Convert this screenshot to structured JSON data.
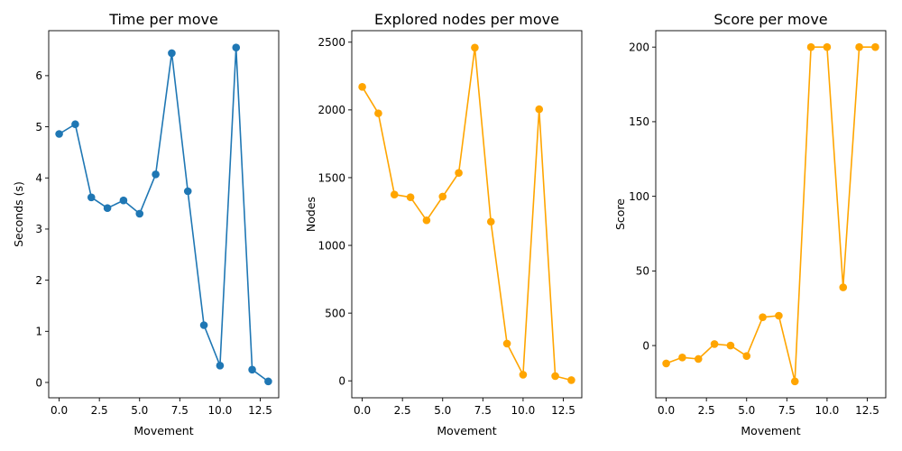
{
  "chart_data": [
    {
      "type": "line",
      "title": "Time per move",
      "xlabel": "Movement",
      "ylabel": "Seconds (s)",
      "xlim": [
        -0.65,
        13.65
      ],
      "ylim": [
        -0.3,
        6.88
      ],
      "xticks": [
        0,
        2.5,
        5,
        7.5,
        10,
        12.5
      ],
      "xtick_labels": [
        "0.0",
        "2.5",
        "5.0",
        "7.5",
        "10.0",
        "12.5"
      ],
      "yticks": [
        0,
        1,
        2,
        3,
        4,
        5,
        6
      ],
      "ytick_labels": [
        "0",
        "1",
        "2",
        "3",
        "4",
        "5",
        "6"
      ],
      "color": "#1f77b4",
      "marker": "circle",
      "grid": false,
      "x": [
        0,
        1,
        2,
        3,
        4,
        5,
        6,
        7,
        8,
        9,
        10,
        11,
        12,
        13
      ],
      "values": [
        4.86,
        5.05,
        3.62,
        3.41,
        3.56,
        3.3,
        4.07,
        6.44,
        3.74,
        1.12,
        0.33,
        6.55,
        0.25,
        0.02
      ]
    },
    {
      "type": "line",
      "title": "Explored nodes per move",
      "xlabel": "Movement",
      "ylabel": "Nodes",
      "xlim": [
        -0.65,
        13.65
      ],
      "ylim": [
        -125,
        2585
      ],
      "xticks": [
        0,
        2.5,
        5,
        7.5,
        10,
        12.5
      ],
      "xtick_labels": [
        "0.0",
        "2.5",
        "5.0",
        "7.5",
        "10.0",
        "12.5"
      ],
      "yticks": [
        0,
        500,
        1000,
        1500,
        2000,
        2500
      ],
      "ytick_labels": [
        "0",
        "500",
        "1000",
        "1500",
        "2000",
        "2500"
      ],
      "color": "#ffa500",
      "marker": "circle",
      "grid": false,
      "x": [
        0,
        1,
        2,
        3,
        4,
        5,
        6,
        7,
        8,
        9,
        10,
        11,
        12,
        13
      ],
      "values": [
        2170,
        1975,
        1375,
        1355,
        1185,
        1360,
        1535,
        2460,
        1175,
        275,
        45,
        2005,
        35,
        5
      ]
    },
    {
      "type": "line",
      "title": "Score per move",
      "xlabel": "Movement",
      "ylabel": "Score",
      "xlim": [
        -0.65,
        13.65
      ],
      "ylim": [
        -35,
        211
      ],
      "xticks": [
        0,
        2.5,
        5,
        7.5,
        10,
        12.5
      ],
      "xtick_labels": [
        "0.0",
        "2.5",
        "5.0",
        "7.5",
        "10.0",
        "12.5"
      ],
      "yticks": [
        0,
        50,
        100,
        150,
        200
      ],
      "ytick_labels": [
        "0",
        "50",
        "100",
        "150",
        "200"
      ],
      "color": "#ffa500",
      "marker": "circle",
      "grid": false,
      "x": [
        0,
        1,
        2,
        3,
        4,
        5,
        6,
        7,
        8,
        9,
        10,
        11,
        12,
        13
      ],
      "values": [
        -12,
        -8,
        -9,
        1,
        0,
        -7,
        19,
        20,
        -24,
        200,
        200,
        39,
        200,
        200
      ]
    }
  ]
}
